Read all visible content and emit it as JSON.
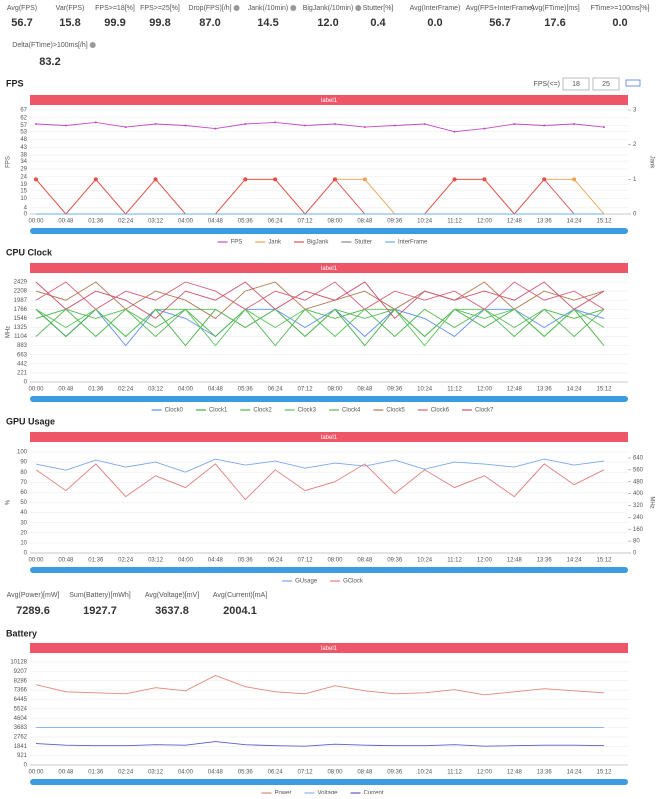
{
  "stats": [
    {
      "label": "Avg(FPS)",
      "value": "56.7"
    },
    {
      "label": "Var(FPS)",
      "value": "15.8"
    },
    {
      "label": "FPS>=18[%]",
      "value": "99.9"
    },
    {
      "label": "FPS>=25[%]",
      "value": "99.8"
    },
    {
      "label": "Drop(FPS)[/h]",
      "value": "87.0"
    },
    {
      "label": "Jank(/10min)",
      "value": "14.5"
    },
    {
      "label": "BigJank(/10min)",
      "value": "12.0"
    },
    {
      "label": "Stutter[%]",
      "value": "0.4"
    },
    {
      "label": "Avg(InterFrame)",
      "value": "0.0"
    },
    {
      "label": "Avg(FPS+InterFrame)",
      "value": "56.7"
    },
    {
      "label": "Avg(FTime)[ms]",
      "value": "17.6"
    },
    {
      "label": "FTime>=100ms[%]",
      "value": "0.0"
    },
    {
      "label": "Delta(FTime)>100ms[/h]",
      "value": "83.2"
    }
  ],
  "fps_filter": {
    "label": "FPS(<=)",
    "values": [
      "18",
      "25"
    ]
  },
  "power_stats": [
    {
      "label": "Avg(Power)[mW]",
      "value": "7289.6"
    },
    {
      "label": "Sum(Battery)[mWh]",
      "value": "1927.7"
    },
    {
      "label": "Avg(Voltage)[mV]",
      "value": "3637.8"
    },
    {
      "label": "Avg(Current)[mA]",
      "value": "2004.1"
    }
  ],
  "charts": [
    {
      "type": "line",
      "title": "FPS",
      "bar_label": "label1",
      "ylabel": "FPS",
      "y2label": "Jank",
      "categories": [
        "00:00",
        "00:48",
        "01:36",
        "02:24",
        "03:12",
        "04:00",
        "04:48",
        "05:36",
        "06:24",
        "07:12",
        "08:00",
        "08:48",
        "09:36",
        "10:24",
        "11:12",
        "12:00",
        "12:48",
        "13:36",
        "14:24",
        "15:12"
      ],
      "ylim": [
        0,
        67
      ],
      "yticks": [
        0,
        4,
        10,
        15,
        19,
        24,
        29,
        34,
        38,
        43,
        48,
        53,
        57,
        62,
        67
      ],
      "y2lim": [
        0,
        3
      ],
      "y2ticks": [
        0,
        1,
        2,
        3
      ],
      "series": [
        {
          "name": "FPS",
          "color": "#c04fc0",
          "values": [
            58,
            57,
            59,
            56,
            58,
            57,
            55,
            58,
            59,
            57,
            58,
            56,
            57,
            58,
            53,
            55,
            58,
            57,
            58,
            56
          ]
        },
        {
          "name": "Jank",
          "color": "#f0a050",
          "axis": "y2",
          "values": [
            1,
            0,
            1,
            0,
            1,
            0,
            0,
            1,
            1,
            0,
            1,
            1,
            0,
            0,
            1,
            1,
            0,
            1,
            1,
            0
          ]
        },
        {
          "name": "BigJank",
          "color": "#e05050",
          "axis": "y2",
          "values": [
            1,
            0,
            1,
            0,
            1,
            0,
            0,
            1,
            1,
            0,
            1,
            0,
            0,
            0,
            1,
            1,
            0,
            1,
            0,
            0
          ]
        },
        {
          "name": "Stutter",
          "color": "#888888",
          "axis": "y2",
          "values": [
            0,
            0,
            0,
            0,
            0,
            0,
            0,
            0,
            0,
            0,
            0,
            0,
            0,
            0,
            0,
            0,
            0,
            0,
            0,
            0
          ]
        },
        {
          "name": "InterFrame",
          "color": "#6ab0e0",
          "axis": "y2",
          "values": [
            0,
            0,
            0,
            0,
            0,
            0,
            0,
            0,
            0,
            0,
            0,
            0,
            0,
            0,
            0,
            0,
            0,
            0,
            0,
            0
          ]
        }
      ]
    },
    {
      "type": "line",
      "title": "CPU Clock",
      "bar_label": "label1",
      "ylabel": "MHz",
      "categories": [
        "00:00",
        "00:48",
        "01:36",
        "02:24",
        "03:12",
        "04:00",
        "04:48",
        "05:36",
        "06:24",
        "07:12",
        "08:00",
        "08:48",
        "09:36",
        "10:24",
        "11:12",
        "12:00",
        "12:48",
        "13:36",
        "14:24",
        "15:12"
      ],
      "ylim": [
        0,
        2429
      ],
      "yticks": [
        0,
        221,
        442,
        663,
        883,
        1104,
        1325,
        1546,
        1766,
        1987,
        2208,
        2429
      ],
      "series": [
        {
          "name": "Clock0",
          "color": "#5b8ff0",
          "values": [
            1766,
            1104,
            1766,
            883,
            1766,
            1546,
            1104,
            1766,
            1766,
            1325,
            1766,
            1104,
            1766,
            1546,
            1104,
            1766,
            1766,
            1325,
            1766,
            1546
          ]
        },
        {
          "name": "Clock1",
          "color": "#3fae3f",
          "values": [
            1766,
            1104,
            1766,
            1104,
            1766,
            883,
            1766,
            1325,
            1766,
            1104,
            1766,
            883,
            1766,
            1104,
            1766,
            1325,
            1766,
            1104,
            1766,
            883
          ]
        },
        {
          "name": "Clock2",
          "color": "#4cb84c",
          "values": [
            1546,
            1766,
            1104,
            1766,
            1325,
            1766,
            1104,
            1766,
            883,
            1766,
            1546,
            1766,
            1104,
            1766,
            1325,
            1766,
            1104,
            1766,
            1546,
            1766
          ]
        },
        {
          "name": "Clock3",
          "color": "#56c456",
          "values": [
            1766,
            1325,
            1766,
            1104,
            1766,
            1766,
            883,
            1766,
            1325,
            1766,
            1104,
            1766,
            1766,
            883,
            1766,
            1546,
            1766,
            1104,
            1766,
            1325
          ]
        },
        {
          "name": "Clock4",
          "color": "#5cb85c",
          "values": [
            1104,
            1766,
            1546,
            1766,
            1104,
            1766,
            1766,
            1325,
            1766,
            1104,
            1766,
            1546,
            1766,
            1104,
            1766,
            1766,
            1325,
            1766,
            1104,
            1766
          ]
        },
        {
          "name": "Clock5",
          "color": "#b07a50",
          "values": [
            2208,
            1987,
            2429,
            1766,
            2208,
            1987,
            1546,
            2208,
            2429,
            1766,
            1987,
            2208,
            1766,
            2208,
            1987,
            2429,
            1766,
            2208,
            1987,
            2208
          ]
        },
        {
          "name": "Clock6",
          "color": "#d9607a",
          "values": [
            1987,
            2429,
            1766,
            2208,
            1987,
            2429,
            2208,
            1766,
            2208,
            1987,
            2429,
            1766,
            2208,
            1987,
            2208,
            1766,
            2429,
            1987,
            2208,
            1766
          ]
        },
        {
          "name": "Clock7",
          "color": "#c9506a",
          "values": [
            2429,
            1766,
            2208,
            1987,
            1546,
            2208,
            1987,
            2429,
            1766,
            2208,
            1987,
            2429,
            1546,
            2208,
            1987,
            2208,
            1987,
            2429,
            1766,
            2208
          ]
        }
      ]
    },
    {
      "type": "line",
      "title": "GPU Usage",
      "bar_label": "label1",
      "ylabel": "%",
      "y2label": "MHz",
      "categories": [
        "00:00",
        "00:48",
        "01:36",
        "02:24",
        "03:12",
        "04:00",
        "04:48",
        "05:36",
        "06:24",
        "07:12",
        "08:00",
        "08:48",
        "09:36",
        "10:24",
        "11:12",
        "12:00",
        "12:48",
        "13:36",
        "14:24",
        "15:12"
      ],
      "ylim": [
        0,
        100
      ],
      "yticks": [
        0,
        10,
        20,
        30,
        40,
        50,
        60,
        70,
        80,
        90,
        100
      ],
      "y2lim": [
        0,
        680
      ],
      "y2ticks": [
        0,
        80,
        160,
        240,
        320,
        400,
        480,
        560,
        640
      ],
      "series": [
        {
          "name": "GUsage",
          "color": "#7aa8e8",
          "values": [
            88,
            82,
            92,
            85,
            90,
            80,
            93,
            87,
            91,
            84,
            89,
            86,
            92,
            83,
            90,
            88,
            85,
            93,
            87,
            91
          ]
        },
        {
          "name": "GClock",
          "color": "#e08080",
          "axis": "y2",
          "values": [
            560,
            420,
            600,
            380,
            520,
            440,
            600,
            360,
            560,
            420,
            480,
            600,
            400,
            560,
            440,
            520,
            380,
            600,
            460,
            560
          ]
        }
      ]
    },
    {
      "type": "line",
      "title": "Battery",
      "bar_label": "label1",
      "categories": [
        "00:00",
        "00:48",
        "01:36",
        "02:24",
        "03:12",
        "04:00",
        "04:48",
        "05:36",
        "06:24",
        "07:12",
        "08:00",
        "08:48",
        "09:36",
        "10:24",
        "11:12",
        "12:00",
        "12:48",
        "13:36",
        "14:24",
        "15:12"
      ],
      "ylim": [
        0,
        10128
      ],
      "yticks": [
        0,
        921,
        1841,
        2762,
        3683,
        4604,
        5524,
        6445,
        7366,
        8286,
        9207,
        10128
      ],
      "series": [
        {
          "name": "Power",
          "color": "#e08878",
          "values": [
            7900,
            7200,
            7100,
            7000,
            7600,
            7300,
            8800,
            7700,
            7200,
            7000,
            7800,
            7300,
            7000,
            7100,
            7400,
            6900,
            7200,
            7500,
            7300,
            7100
          ]
        },
        {
          "name": "Voltage",
          "color": "#8fb8e8",
          "values": [
            3683,
            3683,
            3683,
            3683,
            3683,
            3683,
            3683,
            3683,
            3683,
            3683,
            3683,
            3683,
            3683,
            3683,
            3683,
            3683,
            3683,
            3683,
            3683,
            3683
          ]
        },
        {
          "name": "Current",
          "color": "#5b5bc8",
          "values": [
            2100,
            1950,
            1900,
            1900,
            2000,
            1950,
            2300,
            2000,
            1900,
            1850,
            2050,
            1950,
            1900,
            1900,
            2000,
            1850,
            1900,
            1950,
            1950,
            1900
          ]
        }
      ]
    }
  ]
}
